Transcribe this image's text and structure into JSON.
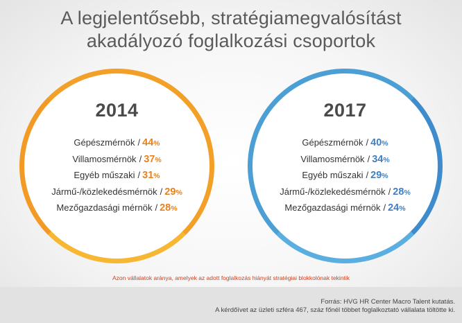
{
  "title": {
    "line1": "A legjelentősebb, stratégiamegvalósítást",
    "line2": "akadályozó foglalkozási csoportok"
  },
  "colors": {
    "accent_2014": "#f2a027",
    "accent_2017": "#4b9fd5",
    "value_2014": "#e8821c",
    "value_2017": "#3f7fc4",
    "note": "#d2401f"
  },
  "panels": [
    {
      "year": "2014",
      "rows": [
        {
          "label": "Gépészmérnök",
          "sep": "/",
          "value": "44",
          "unit": "%"
        },
        {
          "label": "Villamosmérnök",
          "sep": "/",
          "value": "37",
          "unit": "%"
        },
        {
          "label": "Egyéb műszaki",
          "sep": "/",
          "value": "31",
          "unit": "%"
        },
        {
          "label": "Jármű-/közlekedésmérnök",
          "sep": "/",
          "value": "29",
          "unit": "%"
        },
        {
          "label": "Mezőgazdasági mérnök",
          "sep": "/",
          "value": "28",
          "unit": "%"
        }
      ]
    },
    {
      "year": "2017",
      "rows": [
        {
          "label": "Gépészmérnök",
          "sep": "/",
          "value": "40",
          "unit": "%"
        },
        {
          "label": "Villamosmérnök",
          "sep": "/",
          "value": "34",
          "unit": "%"
        },
        {
          "label": "Egyéb műszaki",
          "sep": "/",
          "value": "29",
          "unit": "%"
        },
        {
          "label": "Jármű-/közlekedésmérnök",
          "sep": "/",
          "value": "28",
          "unit": "%"
        },
        {
          "label": "Mezőgazdasági mérnök",
          "sep": "/",
          "value": "24",
          "unit": "%"
        }
      ]
    }
  ],
  "note": "Azon vállalatok aránya, amelyek az adott foglalkozás hiányát stratégiai blokkolónak tekintik",
  "source": {
    "line1": "Forrás: HVG HR Center Macro Talent kutatás.",
    "line2": "A kérdőívet az üzleti szféra 467, száz főnél többet foglalkoztató vállalata töltötte ki."
  }
}
